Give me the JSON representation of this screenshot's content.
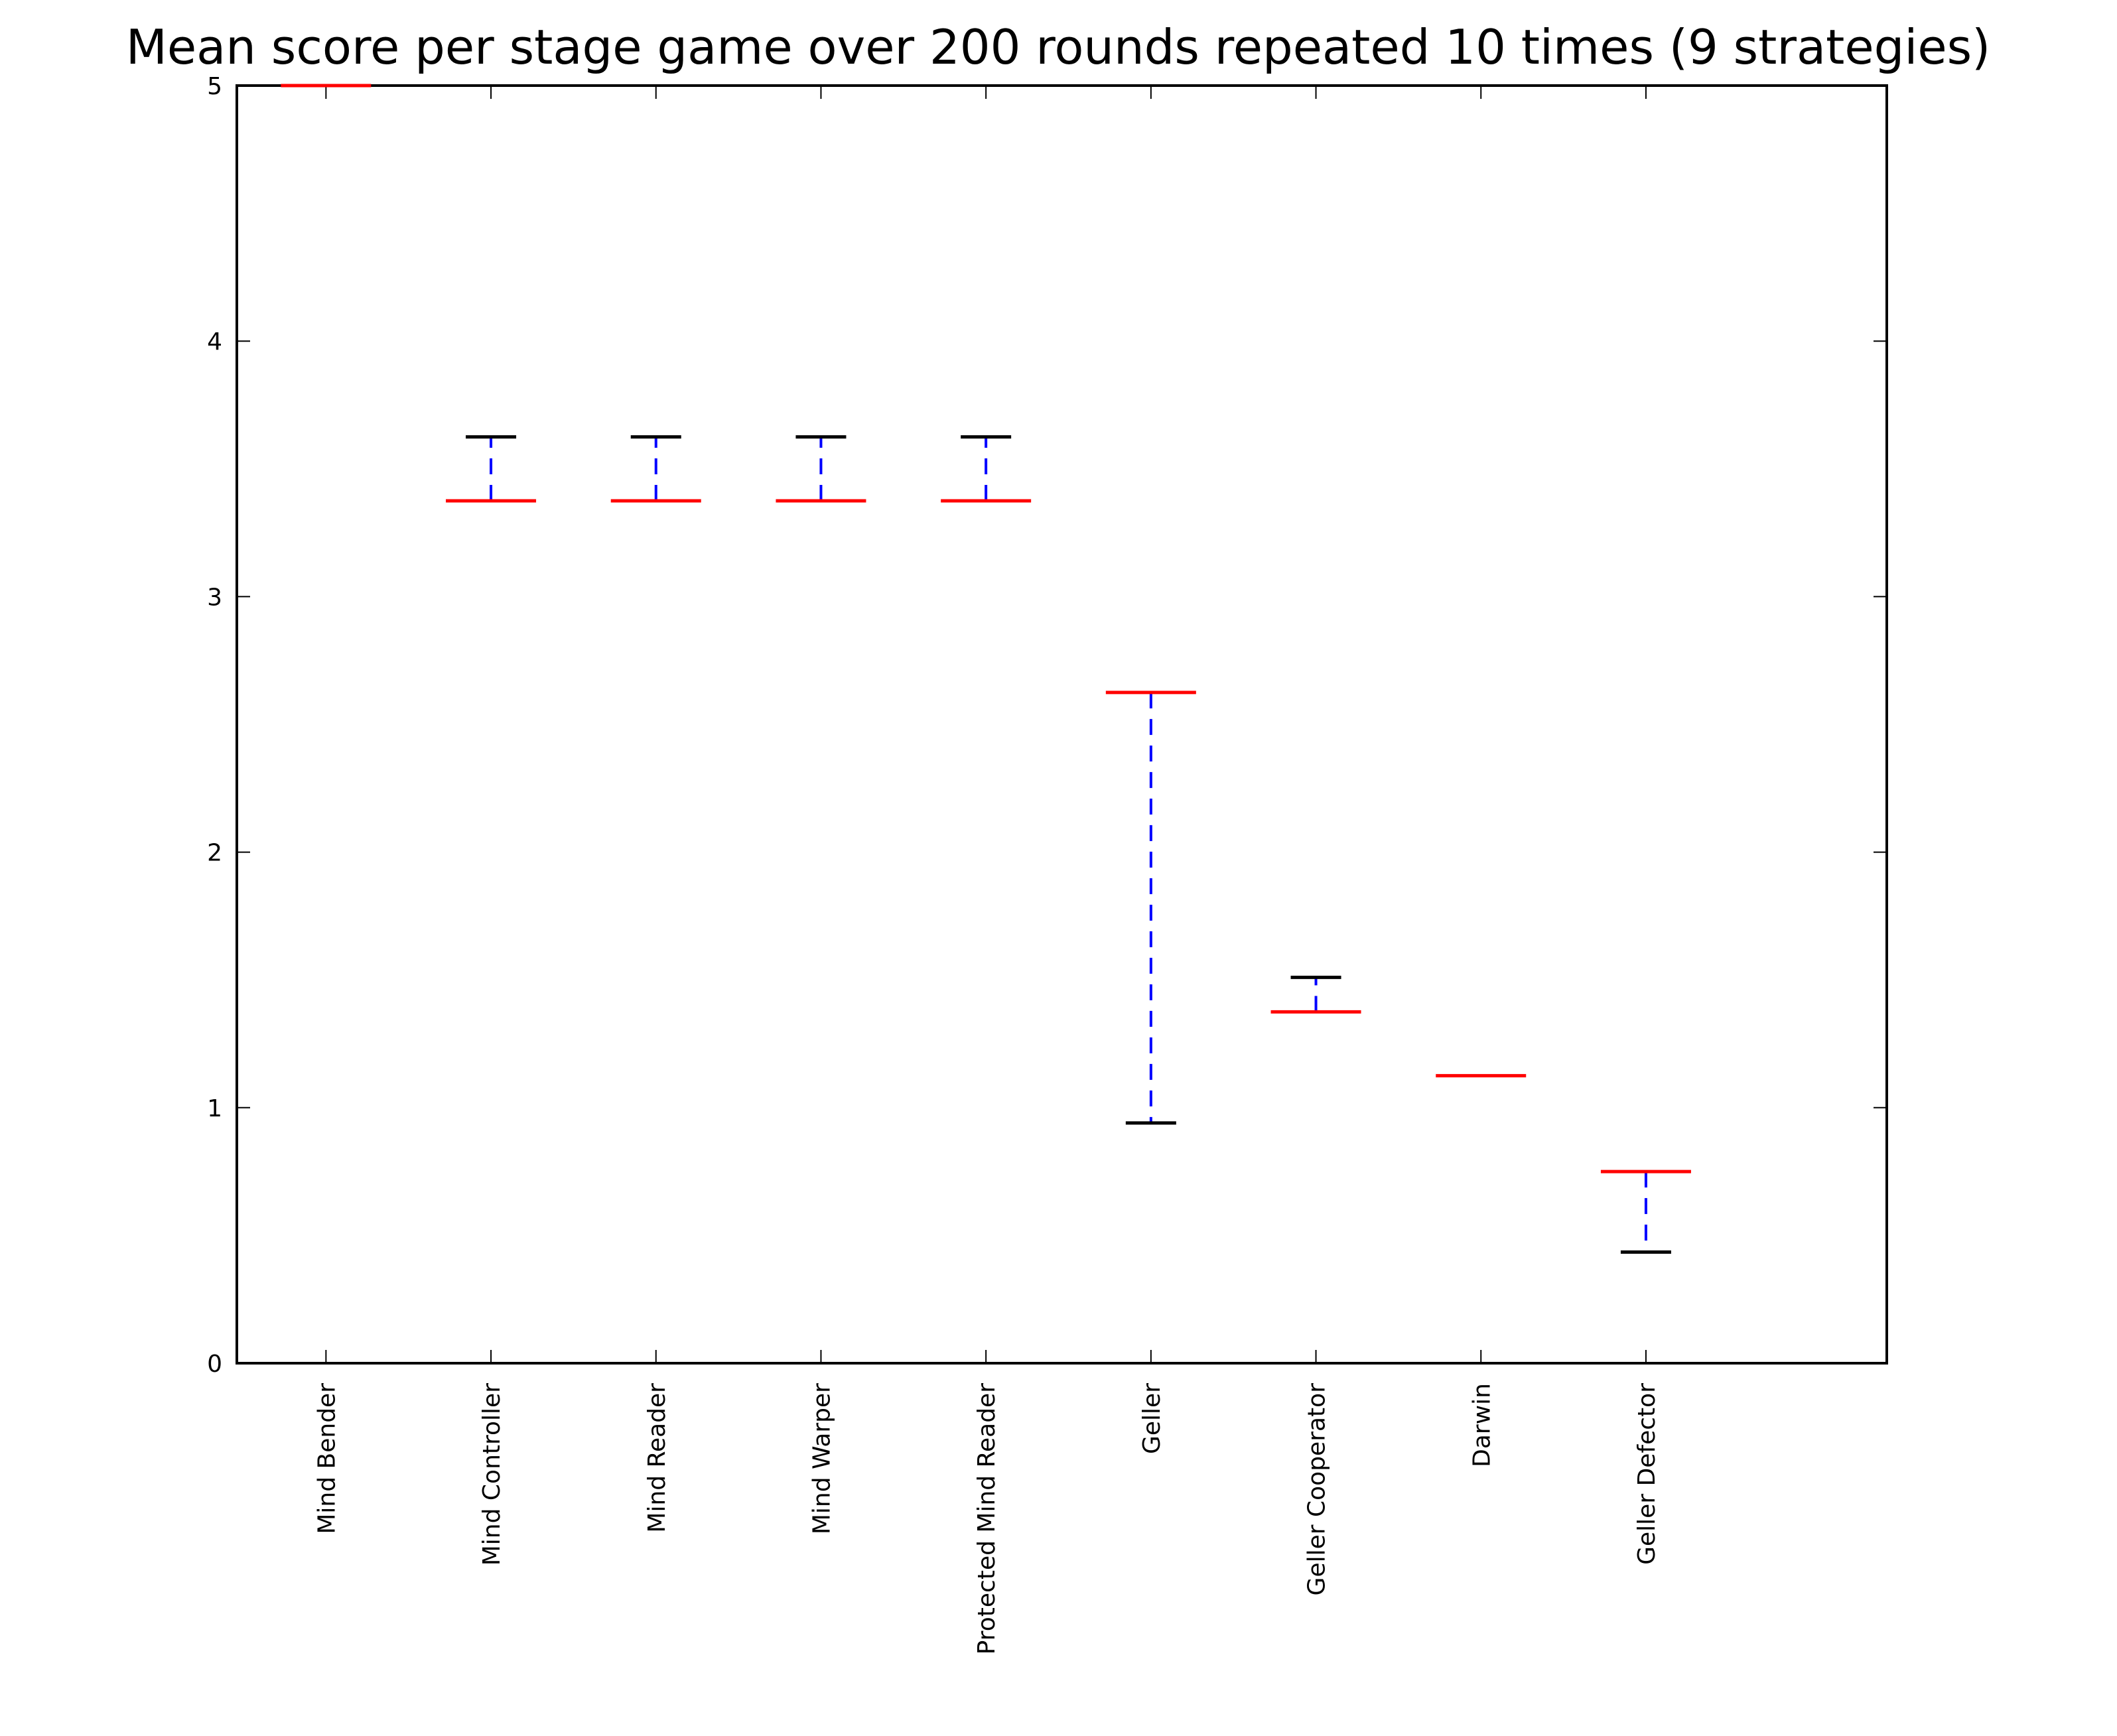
{
  "chart_data": {
    "type": "box",
    "title": "Mean score per stage game over 200 rounds repeated 10 times (9 strategies)",
    "xlabel": "",
    "ylabel": "",
    "ylim": [
      0,
      5
    ],
    "yticks": [
      0,
      1,
      2,
      3,
      4,
      5
    ],
    "grid": false,
    "legend": "none",
    "colors": {
      "median": "#ff0000",
      "whisker": "#0000ff",
      "cap": "#000000",
      "axes": "#000000"
    },
    "categories": [
      "Mind Bender",
      "Mind Controller",
      "Mind Reader",
      "Mind Warper",
      "Protected Mind Reader",
      "Geller",
      "Geller Cooperator",
      "Darwin",
      "Geller Defector"
    ],
    "boxes": [
      {
        "name": "Mind Bender",
        "min": 5.0,
        "q1": 5.0,
        "median": 5.0,
        "q3": 5.0,
        "max": 5.0
      },
      {
        "name": "Mind Controller",
        "min": 3.375,
        "q1": 3.375,
        "median": 3.375,
        "q3": 3.375,
        "max": 3.625
      },
      {
        "name": "Mind Reader",
        "min": 3.375,
        "q1": 3.375,
        "median": 3.375,
        "q3": 3.375,
        "max": 3.625
      },
      {
        "name": "Mind Warper",
        "min": 3.375,
        "q1": 3.375,
        "median": 3.375,
        "q3": 3.375,
        "max": 3.625
      },
      {
        "name": "Protected Mind Reader",
        "min": 3.375,
        "q1": 3.375,
        "median": 3.375,
        "q3": 3.375,
        "max": 3.625
      },
      {
        "name": "Geller",
        "min": 0.94,
        "q1": 2.625,
        "median": 2.625,
        "q3": 2.625,
        "max": 2.625
      },
      {
        "name": "Geller Cooperator",
        "min": 1.375,
        "q1": 1.375,
        "median": 1.375,
        "q3": 1.375,
        "max": 1.51
      },
      {
        "name": "Darwin",
        "min": 1.125,
        "q1": 1.125,
        "median": 1.125,
        "q3": 1.125,
        "max": 1.125
      },
      {
        "name": "Geller Defector",
        "min": 0.435,
        "q1": 0.75,
        "median": 0.75,
        "q3": 0.75,
        "max": 0.75
      }
    ]
  }
}
